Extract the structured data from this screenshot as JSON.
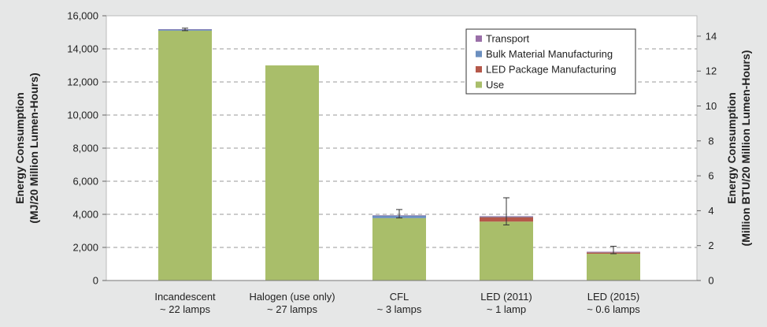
{
  "chart_data": {
    "type": "bar",
    "stacked": true,
    "categories": [
      [
        "Incandescent",
        "~ 22 lamps"
      ],
      [
        "Halogen (use only)",
        "~ 27 lamps"
      ],
      [
        "CFL",
        "~ 3 lamps"
      ],
      [
        "LED (2011)",
        "~ 1 lamp"
      ],
      [
        "LED (2015)",
        "~ 0.6 lamps"
      ]
    ],
    "series": [
      {
        "name": "Use",
        "color": "#a9be6a",
        "values": [
          15100,
          13000,
          3770,
          3560,
          1620
        ]
      },
      {
        "name": "LED Package Manufacturing",
        "color": "#b5584a",
        "values": [
          0,
          0,
          0,
          270,
          80
        ]
      },
      {
        "name": "Bulk Material Manufacturing",
        "color": "#6b8fbf",
        "values": [
          80,
          0,
          160,
          40,
          30
        ]
      },
      {
        "name": "Transport",
        "color": "#9a6fa8",
        "values": [
          10,
          0,
          10,
          20,
          10
        ]
      }
    ],
    "error_bars": [
      {
        "low": 15100,
        "high": 15250
      },
      null,
      {
        "low": 3780,
        "high": 4290
      },
      {
        "low": 3360,
        "high": 5000
      },
      {
        "low": 1620,
        "high": 2070
      }
    ],
    "ylabel": [
      "Energy Consumption",
      "(MJ/20 Million Lumen-Hours)"
    ],
    "ylabel_right": [
      "Energy Consumption",
      "(Million BTU/20 Million Lumen-Hours)"
    ],
    "ylim": [
      0,
      16000
    ],
    "yticks": [
      "0",
      "2,000",
      "4,000",
      "6,000",
      "8,000",
      "10,000",
      "12,000",
      "14,000",
      "16,000"
    ],
    "ylim_right": [
      0,
      15.17
    ],
    "yticks_right": [
      "0",
      "2",
      "4",
      "6",
      "8",
      "10",
      "12",
      "14"
    ],
    "grid": true,
    "legend": {
      "placement": "top-right",
      "order": [
        "Transport",
        "Bulk Material Manufacturing",
        "LED Package Manufacturing",
        "Use"
      ]
    }
  }
}
